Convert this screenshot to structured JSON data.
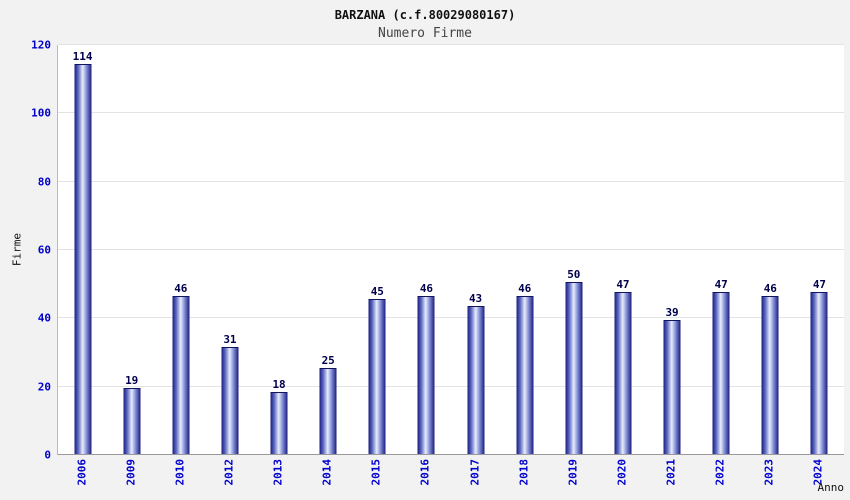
{
  "chart": {
    "title": "BARZANA (c.f.80029080167)",
    "subtitle": "Numero Firme",
    "ylabel": "Firme",
    "xlabel": "Anno"
  },
  "chart_data": {
    "type": "bar",
    "title": "BARZANA (c.f.80029080167)",
    "subtitle": "Numero Firme",
    "xlabel": "Anno",
    "ylabel": "Firme",
    "categories": [
      "2006",
      "2009",
      "2010",
      "2012",
      "2013",
      "2014",
      "2015",
      "2016",
      "2017",
      "2018",
      "2019",
      "2020",
      "2021",
      "2022",
      "2023",
      "2024"
    ],
    "values": [
      114,
      19,
      46,
      31,
      18,
      25,
      45,
      46,
      43,
      46,
      50,
      47,
      39,
      47,
      46,
      47
    ],
    "ylim": [
      0,
      120
    ],
    "ytick_step": 20,
    "grid": true,
    "legend": "none",
    "colors": {
      "bar_dark": "#1b1b7e",
      "bar_light": "#e9edfa",
      "tick_label": "#0000cc",
      "value_label": "#00004d",
      "grid_line": "#e3e3e3",
      "axis_line": "#999999",
      "background": "#f2f2f2",
      "plot_background": "#ffffff"
    }
  }
}
